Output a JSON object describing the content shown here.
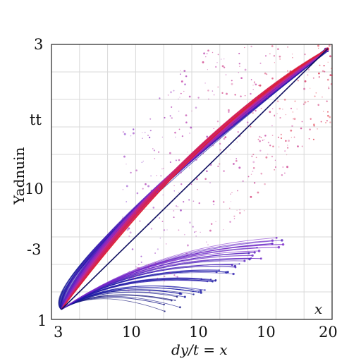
{
  "chart_data": {
    "type": "line",
    "title": "",
    "xlabel": "dy/t = x",
    "ylabel": "Yadnuin",
    "corner_label": "x",
    "x_tick_labels": [
      "3",
      "10",
      "10",
      "10",
      "20"
    ],
    "y_tick_labels": [
      "3",
      "tt",
      "10",
      "-3",
      "1"
    ],
    "grid": true,
    "legend": "none",
    "colors": {
      "red": "#e0202a",
      "magenta": "#c02a9a",
      "purple": "#7a2acb",
      "blue": "#1a1aa8",
      "navy": "#101060"
    },
    "fan": {
      "origin": [
        0,
        0
      ],
      "apex": [
        1,
        1
      ],
      "description_of_series": "dense bundle of curves diverging from the lower-left origin; the upper group fans toward the top-right apex, the lower group ends in scattered points along the lower edge",
      "series_count": 120
    }
  }
}
